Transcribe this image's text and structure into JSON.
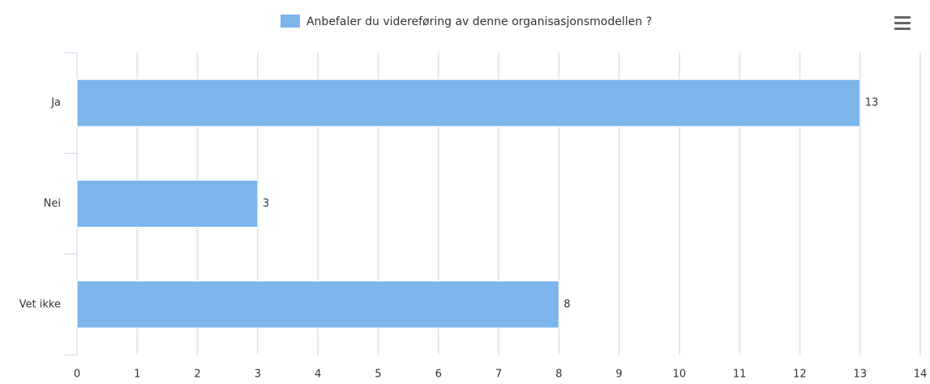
{
  "chart_data": {
    "type": "bar",
    "orientation": "horizontal",
    "categories": [
      "Ja",
      "Nei",
      "Vet ikke"
    ],
    "series": [
      {
        "name": "Anbefaler du videreføring av denne organisasjonsmodellen ?",
        "color": "#7cb5ec",
        "values": [
          13,
          3,
          8
        ]
      }
    ],
    "xlim": [
      0,
      14
    ],
    "xticks": [
      0,
      1,
      2,
      3,
      4,
      5,
      6,
      7,
      8,
      9,
      10,
      11,
      12,
      13,
      14
    ],
    "grid": true,
    "legend": "top",
    "data_labels": true
  }
}
